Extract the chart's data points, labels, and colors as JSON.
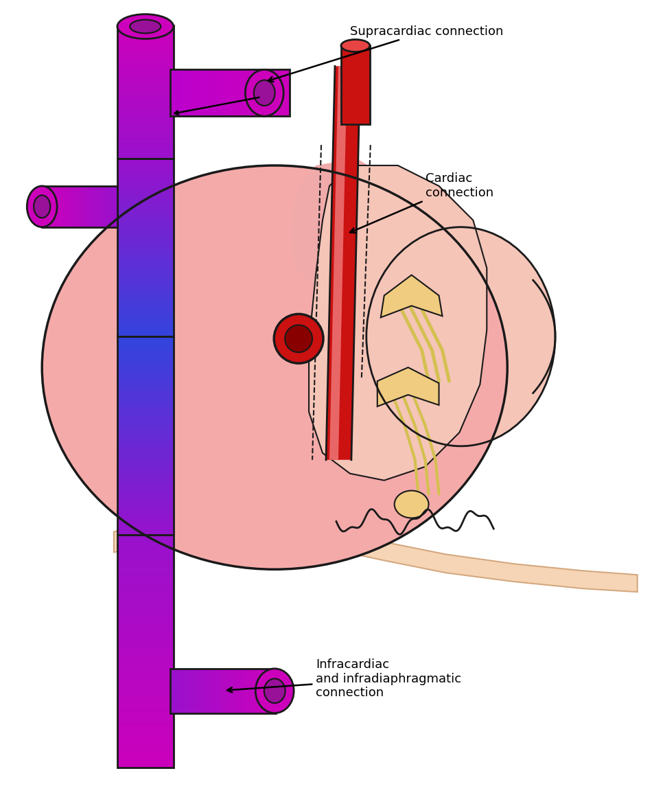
{
  "bg_color": "#ffffff",
  "heart_fill": "#F5AAAA",
  "heart_border": "#1a1a1a",
  "ra_fill": "#F5C5B0",
  "svc_magenta": "#CC00BB",
  "svc_blue": "#3344DD",
  "svc_purple": "#7711BB",
  "aorta_red": "#CC1111",
  "aorta_light": "#E84444",
  "cardiac_red": "#CC1111",
  "cardiac_light": "#E05555",
  "diaphragm_fill": "#F5D5B5",
  "diaphragm_border": "#D4A880",
  "chordae_color": "#D4C050",
  "label_supra": "Supracardiac connection",
  "label_cardiac": "Cardiac\nconnection",
  "label_infra": "Infracardiac\nand infradiaphragmatic\nconnection",
  "font_size": 13,
  "arrow_color": "#000000"
}
